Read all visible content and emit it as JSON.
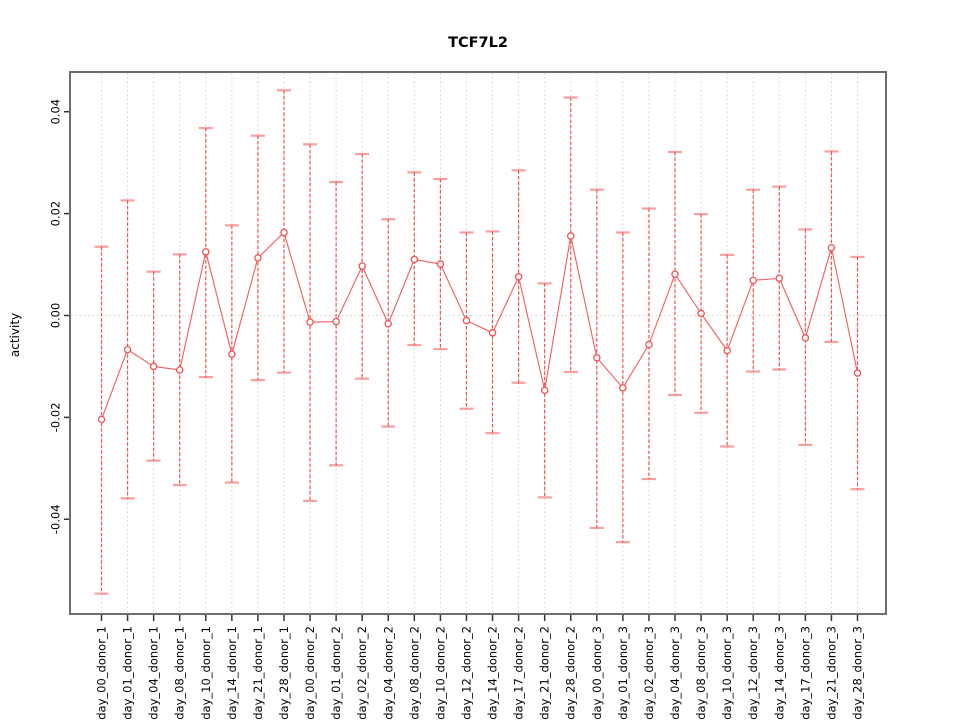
{
  "chart_data": {
    "type": "line",
    "subtype": "points-with-error-bars",
    "title": "TCF7L2",
    "xlabel": "",
    "ylabel": "activity",
    "legend": null,
    "grid": "vertical-dotted-per-category-plus-dotted-zero-line",
    "ylim": [
      -0.0586,
      0.0478
    ],
    "ytick_labels": [
      "0.04",
      "0.02",
      "0.00",
      "-0.02",
      "-0.04"
    ],
    "ytick_values": [
      0.04,
      0.02,
      0.0,
      -0.02,
      -0.04
    ],
    "categories": [
      "day_00_donor_1",
      "day_01_donor_1",
      "day_04_donor_1",
      "day_08_donor_1",
      "day_10_donor_1",
      "day_14_donor_1",
      "day_21_donor_1",
      "day_28_donor_1",
      "day_00_donor_2",
      "day_01_donor_2",
      "day_02_donor_2",
      "day_04_donor_2",
      "day_08_donor_2",
      "day_10_donor_2",
      "day_12_donor_2",
      "day_14_donor_2",
      "day_17_donor_2",
      "day_21_donor_2",
      "day_28_donor_2",
      "day_00_donor_3",
      "day_01_donor_3",
      "day_02_donor_3",
      "day_04_donor_3",
      "day_08_donor_3",
      "day_10_donor_3",
      "day_12_donor_3",
      "day_14_donor_3",
      "day_17_donor_3",
      "day_21_donor_3",
      "day_28_donor_3"
    ],
    "series": [
      {
        "name": "activity",
        "values": [
          -0.0204,
          -0.0067,
          -0.01,
          -0.0107,
          0.0125,
          -0.0076,
          0.0113,
          0.0163,
          -0.0013,
          -0.0012,
          0.0097,
          -0.0016,
          0.011,
          0.0101,
          -0.001,
          -0.0034,
          0.0076,
          -0.0147,
          0.0156,
          -0.0083,
          -0.0142,
          -0.0057,
          0.0081,
          0.0004,
          -0.0069,
          0.0069,
          0.0073,
          -0.0044,
          0.0133,
          -0.0113
        ],
        "lower": [
          -0.0546,
          -0.0359,
          -0.0285,
          -0.0333,
          -0.0121,
          -0.0328,
          -0.0127,
          -0.0112,
          -0.0364,
          -0.0294,
          -0.0124,
          -0.0218,
          -0.0058,
          -0.0066,
          -0.0183,
          -0.0231,
          -0.0132,
          -0.0357,
          -0.0111,
          -0.0417,
          -0.0445,
          -0.0321,
          -0.0156,
          -0.0191,
          -0.0257,
          -0.011,
          -0.0106,
          -0.0254,
          -0.0052,
          -0.0341
        ],
        "upper": [
          0.0135,
          0.0226,
          0.0086,
          0.012,
          0.0368,
          0.0177,
          0.0353,
          0.0442,
          0.0336,
          0.0262,
          0.0317,
          0.0189,
          0.0281,
          0.0268,
          0.0163,
          0.0165,
          0.0285,
          0.0063,
          0.0428,
          0.0247,
          0.0163,
          0.021,
          0.0321,
          0.0199,
          0.0119,
          0.0247,
          0.0253,
          0.0169,
          0.0322,
          0.0115
        ]
      }
    ],
    "colors": {
      "series": "#f25050",
      "error_dash": "#ee4444",
      "grid": "#cfcfcf",
      "frame": "#6e6e6e",
      "tick": "#333333",
      "text": "#000000",
      "background": "#ffffff"
    }
  }
}
